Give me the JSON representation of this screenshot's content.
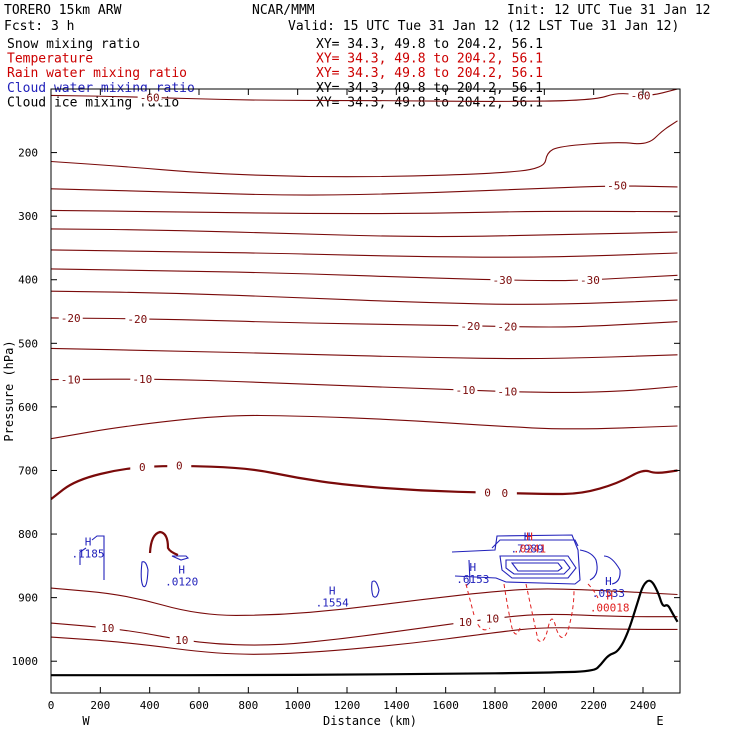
{
  "header": {
    "model": "TORERO  15km ARW",
    "center": "NCAR/MMM",
    "init": "Init: 12 UTC Tue 31 Jan 12",
    "fcst": "Fcst:     3 h",
    "valid": "Valid: 15 UTC Tue 31 Jan 12 (12 LST Tue 31 Jan 12)"
  },
  "fields": [
    {
      "name": "Snow mixing ratio",
      "xy": "XY=  34.3, 49.8 to 204.2, 56.1",
      "color": "#000000",
      "xy_color": "#000000"
    },
    {
      "name": "Temperature",
      "xy": "XY=  34.3, 49.8 to 204.2, 56.1",
      "color": "#cc0000",
      "xy_color": "#cc0000"
    },
    {
      "name": "Rain water mixing ratio",
      "xy": "XY=  34.3, 49.8 to 204.2, 56.1",
      "color": "#cc0000",
      "xy_color": "#cc0000"
    },
    {
      "name": "Cloud water mixing ratio",
      "xy": "XY=  34.3, 49.8 to 204.2, 56.1",
      "color": "#2222bb",
      "xy_color": "#000000"
    },
    {
      "name": "Cloud ice mixing ratio",
      "xy": "XY=  34.3, 49.8 to 204.2, 56.1",
      "color": "#000000",
      "xy_color": "#000000"
    }
  ],
  "colors": {
    "temperature": "#7a0a0a",
    "rain": "#e02020",
    "cloud_water": "#2222bb",
    "terrain": "#000000"
  },
  "chart_data": {
    "type": "line",
    "xlabel": "Distance (km)",
    "ylabel": "Pressure (hPa)",
    "xlim": [
      0,
      2550
    ],
    "ylim": [
      1050,
      100
    ],
    "x_ticks": [
      0,
      200,
      400,
      600,
      800,
      1000,
      1200,
      1400,
      1600,
      1800,
      2000,
      2200,
      2400
    ],
    "y_ticks": [
      200,
      300,
      400,
      500,
      600,
      700,
      800,
      900,
      1000
    ],
    "endpoints": {
      "left": "W",
      "right": "E"
    },
    "temperature_isotherms": [
      {
        "level": -60,
        "labels": [
          {
            "x": 400,
            "text": "-60"
          },
          {
            "x": 2390,
            "text": "-60"
          }
        ],
        "points": [
          [
            0,
            110
          ],
          [
            300,
            112
          ],
          [
            800,
            118
          ],
          [
            1300,
            118
          ],
          [
            1800,
            120
          ],
          [
            2200,
            118
          ],
          [
            2300,
            105
          ],
          [
            2420,
            112
          ],
          [
            2540,
            100
          ]
        ]
      },
      {
        "level": -55,
        "points": [
          [
            0,
            214
          ],
          [
            300,
            222
          ],
          [
            600,
            232
          ],
          [
            1000,
            238
          ],
          [
            1400,
            238
          ],
          [
            1800,
            233
          ],
          [
            2000,
            225
          ],
          [
            2010,
            200
          ],
          [
            2060,
            190
          ],
          [
            2300,
            183
          ],
          [
            2420,
            188
          ],
          [
            2480,
            165
          ],
          [
            2540,
            150
          ]
        ]
      },
      {
        "level": -50,
        "labels": [
          {
            "x": 2295,
            "text": "-50"
          }
        ],
        "points": [
          [
            0,
            257
          ],
          [
            500,
            262
          ],
          [
            1000,
            268
          ],
          [
            1500,
            264
          ],
          [
            2000,
            256
          ],
          [
            2300,
            252
          ],
          [
            2540,
            254
          ]
        ]
      },
      {
        "level": -45,
        "points": [
          [
            0,
            291
          ],
          [
            500,
            293
          ],
          [
            1000,
            296
          ],
          [
            1500,
            296
          ],
          [
            2000,
            292
          ],
          [
            2540,
            293
          ]
        ]
      },
      {
        "level": -40,
        "points": [
          [
            0,
            320
          ],
          [
            500,
            322
          ],
          [
            1000,
            328
          ],
          [
            1500,
            333
          ],
          [
            2000,
            330
          ],
          [
            2540,
            325
          ]
        ]
      },
      {
        "level": -35,
        "points": [
          [
            0,
            353
          ],
          [
            500,
            356
          ],
          [
            1000,
            359
          ],
          [
            1500,
            364
          ],
          [
            2000,
            365
          ],
          [
            2540,
            358
          ]
        ]
      },
      {
        "level": -30,
        "labels": [
          {
            "x": 1830,
            "text": "-30"
          },
          {
            "x": 2185,
            "text": "-30"
          }
        ],
        "points": [
          [
            0,
            383
          ],
          [
            500,
            386
          ],
          [
            1000,
            390
          ],
          [
            1500,
            397
          ],
          [
            2000,
            402
          ],
          [
            2200,
            400
          ],
          [
            2540,
            393
          ]
        ]
      },
      {
        "level": -25,
        "points": [
          [
            0,
            418
          ],
          [
            500,
            421
          ],
          [
            1000,
            428
          ],
          [
            1500,
            436
          ],
          [
            2000,
            440
          ],
          [
            2540,
            432
          ]
        ]
      },
      {
        "level": -20,
        "labels": [
          {
            "x": 80,
            "text": "-20"
          },
          {
            "x": 350,
            "text": "-20"
          },
          {
            "x": 1700,
            "text": "-20"
          },
          {
            "x": 1850,
            "text": "-20"
          }
        ],
        "points": [
          [
            0,
            460
          ],
          [
            500,
            462
          ],
          [
            1000,
            468
          ],
          [
            1500,
            471
          ],
          [
            2000,
            475
          ],
          [
            2200,
            473
          ],
          [
            2540,
            466
          ]
        ]
      },
      {
        "level": -15,
        "points": [
          [
            0,
            508
          ],
          [
            500,
            512
          ],
          [
            1000,
            517
          ],
          [
            1500,
            522
          ],
          [
            2000,
            525
          ],
          [
            2540,
            518
          ]
        ]
      },
      {
        "level": -10,
        "labels": [
          {
            "x": 80,
            "text": "-10"
          },
          {
            "x": 370,
            "text": "-10"
          },
          {
            "x": 1680,
            "text": "-10"
          },
          {
            "x": 1850,
            "text": "-10"
          }
        ],
        "points": [
          [
            0,
            557
          ],
          [
            500,
            556
          ],
          [
            1000,
            564
          ],
          [
            1500,
            571
          ],
          [
            2000,
            578
          ],
          [
            2300,
            576
          ],
          [
            2540,
            568
          ]
        ]
      },
      {
        "level": -5,
        "points": [
          [
            0,
            650
          ],
          [
            300,
            630
          ],
          [
            700,
            613
          ],
          [
            1000,
            614
          ],
          [
            1400,
            620
          ],
          [
            1800,
            630
          ],
          [
            2100,
            636
          ],
          [
            2540,
            630
          ]
        ]
      },
      {
        "level": 0,
        "labels": [
          {
            "x": 370,
            "text": "0"
          },
          {
            "x": 520,
            "text": "0"
          },
          {
            "x": 1770,
            "text": "0"
          },
          {
            "x": 1840,
            "text": "0"
          }
        ],
        "points": [
          [
            0,
            745
          ],
          [
            100,
            715
          ],
          [
            300,
            696
          ],
          [
            500,
            692
          ],
          [
            800,
            696
          ],
          [
            1000,
            712
          ],
          [
            1200,
            723
          ],
          [
            1500,
            732
          ],
          [
            1800,
            735
          ],
          [
            2000,
            737
          ],
          [
            2150,
            737
          ],
          [
            2300,
            720
          ],
          [
            2400,
            698
          ],
          [
            2450,
            705
          ],
          [
            2540,
            700
          ]
        ]
      },
      {
        "level": 5,
        "points": [
          [
            0,
            885
          ],
          [
            300,
            895
          ],
          [
            600,
            928
          ],
          [
            900,
            928
          ],
          [
            1200,
            918
          ],
          [
            1500,
            903
          ],
          [
            1800,
            890
          ],
          [
            2000,
            885
          ],
          [
            2300,
            890
          ],
          [
            2540,
            895
          ]
        ]
      },
      {
        "level": 10,
        "labels": [
          {
            "x": 230,
            "text": "10"
          },
          {
            "x": 530,
            "text": "10"
          },
          {
            "x": 1680,
            "text": "10"
          },
          {
            "x": 1790,
            "text": "10"
          }
        ],
        "points": [
          [
            0,
            940
          ],
          [
            300,
            950
          ],
          [
            600,
            972
          ],
          [
            900,
            976
          ],
          [
            1200,
            964
          ],
          [
            1500,
            948
          ],
          [
            1800,
            932
          ],
          [
            2000,
            925
          ],
          [
            2300,
            930
          ],
          [
            2540,
            930
          ]
        ]
      },
      {
        "level": 15,
        "points": [
          [
            0,
            962
          ],
          [
            300,
            970
          ],
          [
            700,
            990
          ],
          [
            1000,
            988
          ],
          [
            1400,
            975
          ],
          [
            1800,
            955
          ],
          [
            2000,
            946
          ],
          [
            2300,
            950
          ],
          [
            2540,
            950
          ]
        ]
      }
    ],
    "terrain": {
      "points": [
        [
          0,
          1022
        ],
        [
          300,
          1022
        ],
        [
          800,
          1022
        ],
        [
          1200,
          1021
        ],
        [
          1600,
          1020
        ],
        [
          2000,
          1018
        ],
        [
          2200,
          1016
        ],
        [
          2230,
          1005
        ],
        [
          2260,
          990
        ],
        [
          2300,
          985
        ],
        [
          2340,
          955
        ],
        [
          2380,
          905
        ],
        [
          2400,
          880
        ],
        [
          2430,
          870
        ],
        [
          2460,
          890
        ],
        [
          2480,
          915
        ],
        [
          2500,
          910
        ],
        [
          2520,
          925
        ],
        [
          2540,
          938
        ]
      ]
    },
    "cloud_water_extrema": [
      {
        "x": 150,
        "p": 818,
        "value": ".1185"
      },
      {
        "x": 530,
        "p": 862,
        "value": ".0120"
      },
      {
        "x": 1140,
        "p": 895,
        "value": ".1554"
      },
      {
        "x": 1710,
        "p": 858,
        "value": ".6153"
      },
      {
        "x": 1930,
        "p": 810,
        "value": ".7989"
      },
      {
        "x": 2260,
        "p": 880,
        "value": ".0533"
      }
    ],
    "rain_extrema": [
      {
        "x": 1940,
        "p": 810,
        "value": ".0241"
      },
      {
        "x": 2265,
        "p": 903,
        "value": ".00018"
      }
    ]
  }
}
